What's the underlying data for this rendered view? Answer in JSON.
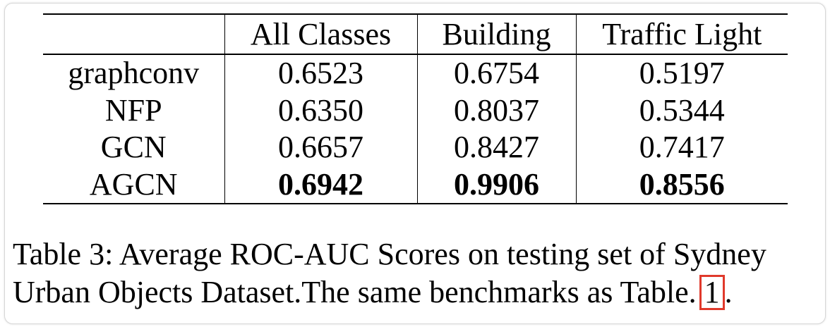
{
  "table": {
    "headers": [
      "",
      "All Classes",
      "Building",
      "Traffic Light"
    ],
    "rows": [
      {
        "method": "graphconv",
        "values": [
          "0.6523",
          "0.6754",
          "0.5197"
        ]
      },
      {
        "method": "NFP",
        "values": [
          "0.6350",
          "0.8037",
          "0.5344"
        ]
      },
      {
        "method": "GCN",
        "values": [
          "0.6657",
          "0.8427",
          "0.7417"
        ]
      },
      {
        "method": "AGCN",
        "values": [
          "0.6942",
          "0.9906",
          "0.8556"
        ],
        "bold": true
      }
    ]
  },
  "caption": {
    "line1": "Table 3: Average ROC-AUC Scores on testing set of Sydney",
    "line2_prefix": "Urban Objects Dataset.The same benchmarks as Table.",
    "ref": "1",
    "suffix": "."
  },
  "colors": {
    "highlight_box": "#e0392b"
  }
}
